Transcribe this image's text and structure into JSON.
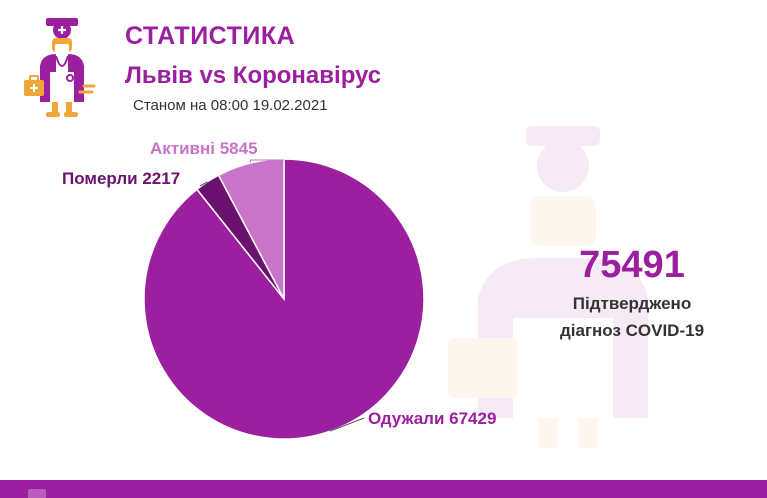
{
  "header": {
    "title": "СТАТИСТИКА",
    "subtitle": "Львів vs Коронавірус",
    "as_of": "Станом на 08:00 19.02.2021"
  },
  "total": {
    "value": "75491",
    "caption_line1": "Підтверджено",
    "caption_line2": "діагноз COVID-19"
  },
  "colors": {
    "brand": "#9b1f9f",
    "recovered": "#9b1f9f",
    "deaths": "#6a126e",
    "active": "#c774c9",
    "accent_orange": "#f0a73a"
  },
  "icons": {
    "logo": "doctor-icon",
    "footer": "footer-icon"
  },
  "chart_data": {
    "type": "pie",
    "title": "",
    "slices": [
      {
        "label": "Одужали 67429",
        "name": "Одужали",
        "value": 67429,
        "color": "#9b1f9f"
      },
      {
        "label": "Померли 2217",
        "name": "Померли",
        "value": 2217,
        "color": "#6a126e"
      },
      {
        "label": "Активні 5845",
        "name": "Активні",
        "value": 5845,
        "color": "#c774c9"
      }
    ]
  }
}
